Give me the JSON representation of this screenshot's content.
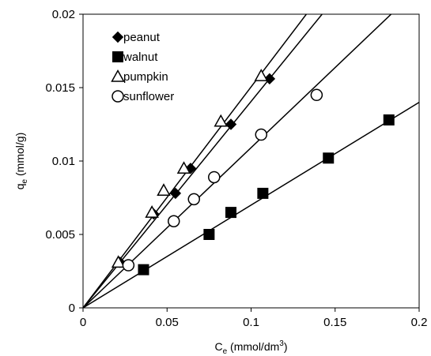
{
  "chart_data": {
    "type": "scatter",
    "title": "",
    "xlabel": {
      "main": "C",
      "sub": "e",
      "rest1": " (mmol/dm",
      "sup": "3",
      "rest2": ")"
    },
    "ylabel": {
      "main": "q",
      "sub": "e",
      "rest": " (mmol/g)"
    },
    "xlim": [
      0,
      0.2
    ],
    "ylim": [
      0,
      0.02
    ],
    "x_ticks": [
      0,
      0.05,
      0.1,
      0.15,
      0.2
    ],
    "x_tick_labels": [
      "0",
      "0.05",
      "0.1",
      "0.15",
      "0.2"
    ],
    "y_ticks": [
      0,
      0.005,
      0.01,
      0.015,
      0.02
    ],
    "y_tick_labels": [
      "0",
      "0.005",
      "0.01",
      "0.015",
      "0.02"
    ],
    "grid": false,
    "legend_position": "top-left",
    "series": [
      {
        "name": "peanut",
        "marker": "diamond",
        "points": [
          [
            0.022,
            0.0031
          ],
          [
            0.042,
            0.0064
          ],
          [
            0.055,
            0.0078
          ],
          [
            0.064,
            0.0095
          ],
          [
            0.088,
            0.0125
          ],
          [
            0.111,
            0.0156
          ]
        ],
        "fit_slope": 0.1406
      },
      {
        "name": "walnut",
        "marker": "square",
        "points": [
          [
            0.036,
            0.0026
          ],
          [
            0.075,
            0.005
          ],
          [
            0.088,
            0.0065
          ],
          [
            0.107,
            0.0078
          ],
          [
            0.146,
            0.0102
          ],
          [
            0.182,
            0.0128
          ]
        ],
        "fit_slope": 0.07
      },
      {
        "name": "pumpkin",
        "marker": "triangle",
        "points": [
          [
            0.021,
            0.0031
          ],
          [
            0.041,
            0.0065
          ],
          [
            0.048,
            0.008
          ],
          [
            0.06,
            0.0095
          ],
          [
            0.082,
            0.0127
          ],
          [
            0.106,
            0.0158
          ]
        ],
        "fit_slope": 0.1505
      },
      {
        "name": "sunflower",
        "marker": "circle",
        "points": [
          [
            0.027,
            0.0029
          ],
          [
            0.054,
            0.0059
          ],
          [
            0.066,
            0.0074
          ],
          [
            0.078,
            0.0089
          ],
          [
            0.106,
            0.0118
          ],
          [
            0.139,
            0.0145
          ]
        ],
        "fit_slope": 0.1091
      }
    ]
  }
}
